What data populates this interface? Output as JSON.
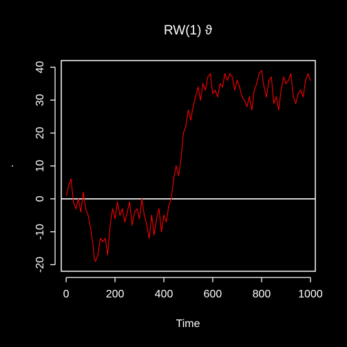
{
  "chart_data": {
    "type": "line",
    "title": "RW(1)   ϑ",
    "xlabel": "Time",
    "ylabel": ".",
    "xlim": [
      -20,
      1020
    ],
    "ylim": [
      -22,
      42
    ],
    "x_ticks": [
      0,
      200,
      400,
      600,
      800,
      1000
    ],
    "y_ticks": [
      -20,
      -10,
      0,
      10,
      20,
      30,
      40
    ],
    "x_tick_labels": [
      "0",
      "200",
      "400",
      "600",
      "800",
      "1000"
    ],
    "y_tick_labels": [
      "-20",
      "-10",
      "0",
      "10",
      "20",
      "30",
      "40"
    ],
    "reference_line": {
      "y": 0,
      "color": "#ffffff"
    },
    "grid": false,
    "legend": "none",
    "background": "#000000",
    "foreground": "#ffffff",
    "series": [
      {
        "color": "#ff0000",
        "x": [
          1,
          10,
          20,
          30,
          40,
          50,
          60,
          70,
          80,
          90,
          100,
          110,
          115,
          120,
          130,
          140,
          150,
          160,
          170,
          180,
          190,
          200,
          210,
          220,
          230,
          240,
          250,
          260,
          270,
          280,
          290,
          300,
          310,
          320,
          330,
          340,
          350,
          360,
          370,
          380,
          390,
          400,
          410,
          420,
          430,
          440,
          450,
          460,
          470,
          480,
          490,
          500,
          510,
          520,
          530,
          540,
          550,
          560,
          570,
          580,
          590,
          600,
          610,
          620,
          630,
          640,
          650,
          660,
          670,
          680,
          690,
          700,
          710,
          720,
          730,
          740,
          750,
          760,
          770,
          780,
          790,
          800,
          810,
          820,
          830,
          840,
          850,
          860,
          870,
          880,
          890,
          900,
          910,
          920,
          930,
          940,
          950,
          960,
          970,
          980,
          990,
          1000
        ],
        "y": [
          1,
          4,
          6,
          -1,
          -3,
          0,
          -4,
          2,
          -3,
          -5,
          -9,
          -14,
          -18,
          -19,
          -17,
          -12,
          -13,
          -12,
          -17,
          -8,
          -3,
          -6,
          -1,
          -5,
          -3,
          -7,
          -4,
          -1,
          -8,
          -4,
          -3,
          -6,
          0,
          -5,
          -8,
          -12,
          -5,
          -11,
          -6,
          -3,
          -10,
          -5,
          -7,
          -2,
          0,
          6,
          10,
          7,
          12,
          20,
          22,
          27,
          24,
          28,
          31,
          34,
          30,
          35,
          33,
          37,
          38,
          32,
          33,
          31,
          35,
          34,
          38,
          36,
          38,
          37,
          33,
          36,
          34,
          31,
          30,
          28,
          31,
          27,
          33,
          35,
          38,
          39,
          34,
          31,
          36,
          37,
          29,
          31,
          27,
          33,
          37,
          35,
          36,
          38,
          31,
          29,
          32,
          33,
          31,
          36,
          38,
          36
        ]
      }
    ]
  }
}
